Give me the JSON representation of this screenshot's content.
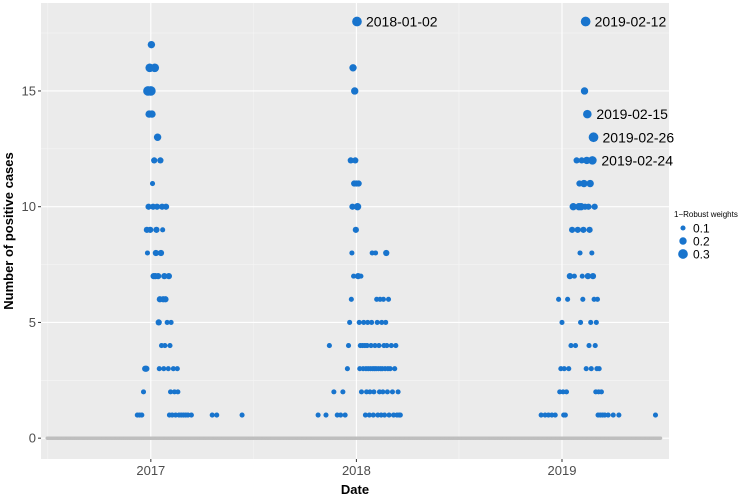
{
  "chart_data": {
    "type": "scatter",
    "title": "",
    "xlabel": "Date",
    "ylabel": "Number of positive cases",
    "xlim": [
      "2016-06-20",
      "2019-07-10"
    ],
    "ylim": [
      -0.9,
      18.8
    ],
    "x_ticks": [
      {
        "value": "2017-01-01",
        "label": "2017"
      },
      {
        "value": "2018-01-01",
        "label": "2018"
      },
      {
        "value": "2019-01-01",
        "label": "2019"
      }
    ],
    "y_ticks": [
      0,
      5,
      10,
      15
    ],
    "grid": true,
    "background": "#EBEBEB",
    "point_color": "#1874CD",
    "zero_color": "#BEBEBE",
    "legend": {
      "title": "1−Robust weights",
      "position": "right",
      "entries": [
        {
          "label": "0.1",
          "weight": 0.1
        },
        {
          "label": "0.2",
          "weight": 0.2
        },
        {
          "label": "0.3",
          "weight": 0.3
        }
      ]
    },
    "zero_range": [
      "2016-07-01",
      "2019-06-25"
    ],
    "points": [
      {
        "x": "2016-12-08",
        "y": 1,
        "w": 0.1
      },
      {
        "x": "2016-12-12",
        "y": 1,
        "w": 0.1
      },
      {
        "x": "2016-12-16",
        "y": 1,
        "w": 0.1
      },
      {
        "x": "2016-12-19",
        "y": 2,
        "w": 0.1
      },
      {
        "x": "2016-12-22",
        "y": 3,
        "w": 0.15
      },
      {
        "x": "2016-12-24",
        "y": 3,
        "w": 0.15
      },
      {
        "x": "2016-12-25",
        "y": 9,
        "w": 0.15
      },
      {
        "x": "2016-12-26",
        "y": 8,
        "w": 0.1
      },
      {
        "x": "2016-12-27",
        "y": 15,
        "w": 0.3
      },
      {
        "x": "2016-12-28",
        "y": 10,
        "w": 0.15
      },
      {
        "x": "2016-12-29",
        "y": 14,
        "w": 0.2
      },
      {
        "x": "2016-12-30",
        "y": 16,
        "w": 0.25
      },
      {
        "x": "2016-12-31",
        "y": 9,
        "w": 0.15
      },
      {
        "x": "2017-01-01",
        "y": 15,
        "w": 0.3
      },
      {
        "x": "2017-01-02",
        "y": 17,
        "w": 0.2
      },
      {
        "x": "2017-01-03",
        "y": 14,
        "w": 0.2
      },
      {
        "x": "2017-01-04",
        "y": 11,
        "w": 0.1
      },
      {
        "x": "2017-01-05",
        "y": 10,
        "w": 0.15
      },
      {
        "x": "2017-01-06",
        "y": 7,
        "w": 0.15
      },
      {
        "x": "2017-01-07",
        "y": 12,
        "w": 0.15
      },
      {
        "x": "2017-01-08",
        "y": 16,
        "w": 0.25
      },
      {
        "x": "2017-01-09",
        "y": 7,
        "w": 0.15
      },
      {
        "x": "2017-01-10",
        "y": 8,
        "w": 0.15
      },
      {
        "x": "2017-01-11",
        "y": 9,
        "w": 0.15
      },
      {
        "x": "2017-01-12",
        "y": 10,
        "w": 0.15
      },
      {
        "x": "2017-01-13",
        "y": 13,
        "w": 0.2
      },
      {
        "x": "2017-01-14",
        "y": 7,
        "w": 0.15
      },
      {
        "x": "2017-01-15",
        "y": 5,
        "w": 0.15
      },
      {
        "x": "2017-01-16",
        "y": 3,
        "w": 0.1
      },
      {
        "x": "2017-01-17",
        "y": 6,
        "w": 0.15
      },
      {
        "x": "2017-01-18",
        "y": 12,
        "w": 0.15
      },
      {
        "x": "2017-01-19",
        "y": 8,
        "w": 0.15
      },
      {
        "x": "2017-01-20",
        "y": 4,
        "w": 0.1
      },
      {
        "x": "2017-01-21",
        "y": 10,
        "w": 0.15
      },
      {
        "x": "2017-01-22",
        "y": 9,
        "w": 0.1
      },
      {
        "x": "2017-01-23",
        "y": 6,
        "w": 0.15
      },
      {
        "x": "2017-01-24",
        "y": 3,
        "w": 0.1
      },
      {
        "x": "2017-01-25",
        "y": 7,
        "w": 0.15
      },
      {
        "x": "2017-01-26",
        "y": 4,
        "w": 0.1
      },
      {
        "x": "2017-01-27",
        "y": 6,
        "w": 0.15
      },
      {
        "x": "2017-01-28",
        "y": 10,
        "w": 0.15
      },
      {
        "x": "2017-01-30",
        "y": 5,
        "w": 0.1
      },
      {
        "x": "2017-02-01",
        "y": 3,
        "w": 0.1
      },
      {
        "x": "2017-02-02",
        "y": 7,
        "w": 0.15
      },
      {
        "x": "2017-02-03",
        "y": 1,
        "w": 0.1
      },
      {
        "x": "2017-02-04",
        "y": 4,
        "w": 0.1
      },
      {
        "x": "2017-02-05",
        "y": 2,
        "w": 0.1
      },
      {
        "x": "2017-02-06",
        "y": 5,
        "w": 0.1
      },
      {
        "x": "2017-02-08",
        "y": 1,
        "w": 0.1
      },
      {
        "x": "2017-02-10",
        "y": 3,
        "w": 0.1
      },
      {
        "x": "2017-02-12",
        "y": 2,
        "w": 0.1
      },
      {
        "x": "2017-02-14",
        "y": 1,
        "w": 0.1
      },
      {
        "x": "2017-02-17",
        "y": 3,
        "w": 0.1
      },
      {
        "x": "2017-02-18",
        "y": 2,
        "w": 0.1
      },
      {
        "x": "2017-02-20",
        "y": 1,
        "w": 0.1
      },
      {
        "x": "2017-02-24",
        "y": 1,
        "w": 0.1
      },
      {
        "x": "2017-02-28",
        "y": 1,
        "w": 0.1
      },
      {
        "x": "2017-03-04",
        "y": 1,
        "w": 0.1
      },
      {
        "x": "2017-03-08",
        "y": 1,
        "w": 0.1
      },
      {
        "x": "2017-03-14",
        "y": 1,
        "w": 0.1
      },
      {
        "x": "2017-04-20",
        "y": 1,
        "w": 0.1
      },
      {
        "x": "2017-04-28",
        "y": 1,
        "w": 0.1
      },
      {
        "x": "2017-06-12",
        "y": 1,
        "w": 0.1
      },
      {
        "x": "2017-10-25",
        "y": 1,
        "w": 0.1
      },
      {
        "x": "2017-11-08",
        "y": 1,
        "w": 0.1
      },
      {
        "x": "2017-11-14",
        "y": 4,
        "w": 0.1
      },
      {
        "x": "2017-11-22",
        "y": 2,
        "w": 0.1
      },
      {
        "x": "2017-11-28",
        "y": 1,
        "w": 0.1
      },
      {
        "x": "2017-12-04",
        "y": 1,
        "w": 0.1
      },
      {
        "x": "2017-12-08",
        "y": 2,
        "w": 0.1
      },
      {
        "x": "2017-12-12",
        "y": 1,
        "w": 0.1
      },
      {
        "x": "2017-12-16",
        "y": 3,
        "w": 0.1
      },
      {
        "x": "2017-12-18",
        "y": 4,
        "w": 0.1
      },
      {
        "x": "2017-12-20",
        "y": 5,
        "w": 0.1
      },
      {
        "x": "2017-12-22",
        "y": 12,
        "w": 0.15
      },
      {
        "x": "2017-12-23",
        "y": 6,
        "w": 0.1
      },
      {
        "x": "2017-12-24",
        "y": 8,
        "w": 0.1
      },
      {
        "x": "2017-12-25",
        "y": 10,
        "w": 0.15
      },
      {
        "x": "2017-12-26",
        "y": 16,
        "w": 0.2
      },
      {
        "x": "2017-12-27",
        "y": 7,
        "w": 0.1
      },
      {
        "x": "2017-12-28",
        "y": 11,
        "w": 0.15
      },
      {
        "x": "2017-12-29",
        "y": 15,
        "w": 0.2
      },
      {
        "x": "2017-12-30",
        "y": 12,
        "w": 0.15
      },
      {
        "x": "2017-12-31",
        "y": 9,
        "w": 0.15
      },
      {
        "x": "2018-01-01",
        "y": 11,
        "w": 0.15
      },
      {
        "x": "2018-01-02",
        "y": 18,
        "w": 0.3
      },
      {
        "x": "2018-01-03",
        "y": 10,
        "w": 0.2
      },
      {
        "x": "2018-01-04",
        "y": 7,
        "w": 0.15
      },
      {
        "x": "2018-01-05",
        "y": 11,
        "w": 0.15
      },
      {
        "x": "2018-01-06",
        "y": 5,
        "w": 0.1
      },
      {
        "x": "2018-01-07",
        "y": 3,
        "w": 0.1
      },
      {
        "x": "2018-01-08",
        "y": 4,
        "w": 0.1
      },
      {
        "x": "2018-01-09",
        "y": 7,
        "w": 0.1
      },
      {
        "x": "2018-01-10",
        "y": 2,
        "w": 0.1
      },
      {
        "x": "2018-01-12",
        "y": 4,
        "w": 0.1
      },
      {
        "x": "2018-01-13",
        "y": 3,
        "w": 0.1
      },
      {
        "x": "2018-01-14",
        "y": 5,
        "w": 0.1
      },
      {
        "x": "2018-01-16",
        "y": 4,
        "w": 0.1
      },
      {
        "x": "2018-01-17",
        "y": 1,
        "w": 0.1
      },
      {
        "x": "2018-01-18",
        "y": 3,
        "w": 0.1
      },
      {
        "x": "2018-01-19",
        "y": 2,
        "w": 0.1
      },
      {
        "x": "2018-01-20",
        "y": 4,
        "w": 0.1
      },
      {
        "x": "2018-01-21",
        "y": 5,
        "w": 0.1
      },
      {
        "x": "2018-01-22",
        "y": 3,
        "w": 0.1
      },
      {
        "x": "2018-01-24",
        "y": 1,
        "w": 0.1
      },
      {
        "x": "2018-01-25",
        "y": 2,
        "w": 0.1
      },
      {
        "x": "2018-01-26",
        "y": 3,
        "w": 0.1
      },
      {
        "x": "2018-01-27",
        "y": 4,
        "w": 0.1
      },
      {
        "x": "2018-01-28",
        "y": 5,
        "w": 0.1
      },
      {
        "x": "2018-01-29",
        "y": 8,
        "w": 0.1
      },
      {
        "x": "2018-01-30",
        "y": 3,
        "w": 0.1
      },
      {
        "x": "2018-01-31",
        "y": 1,
        "w": 0.1
      },
      {
        "x": "2018-02-01",
        "y": 2,
        "w": 0.1
      },
      {
        "x": "2018-02-02",
        "y": 3,
        "w": 0.1
      },
      {
        "x": "2018-02-03",
        "y": 4,
        "w": 0.1
      },
      {
        "x": "2018-02-04",
        "y": 8,
        "w": 0.1
      },
      {
        "x": "2018-02-05",
        "y": 3,
        "w": 0.1
      },
      {
        "x": "2018-02-06",
        "y": 6,
        "w": 0.1
      },
      {
        "x": "2018-02-07",
        "y": 5,
        "w": 0.1
      },
      {
        "x": "2018-02-08",
        "y": 1,
        "w": 0.1
      },
      {
        "x": "2018-02-09",
        "y": 3,
        "w": 0.1
      },
      {
        "x": "2018-02-10",
        "y": 4,
        "w": 0.1
      },
      {
        "x": "2018-02-11",
        "y": 2,
        "w": 0.1
      },
      {
        "x": "2018-02-12",
        "y": 6,
        "w": 0.1
      },
      {
        "x": "2018-02-13",
        "y": 3,
        "w": 0.1
      },
      {
        "x": "2018-02-14",
        "y": 1,
        "w": 0.1
      },
      {
        "x": "2018-02-15",
        "y": 5,
        "w": 0.1
      },
      {
        "x": "2018-02-16",
        "y": 3,
        "w": 0.1
      },
      {
        "x": "2018-02-17",
        "y": 2,
        "w": 0.1
      },
      {
        "x": "2018-02-18",
        "y": 6,
        "w": 0.1
      },
      {
        "x": "2018-02-19",
        "y": 4,
        "w": 0.1
      },
      {
        "x": "2018-02-20",
        "y": 1,
        "w": 0.1
      },
      {
        "x": "2018-02-21",
        "y": 3,
        "w": 0.1
      },
      {
        "x": "2018-02-22",
        "y": 5,
        "w": 0.1
      },
      {
        "x": "2018-02-23",
        "y": 8,
        "w": 0.15
      },
      {
        "x": "2018-02-24",
        "y": 4,
        "w": 0.1
      },
      {
        "x": "2018-02-25",
        "y": 2,
        "w": 0.1
      },
      {
        "x": "2018-02-26",
        "y": 3,
        "w": 0.1
      },
      {
        "x": "2018-02-27",
        "y": 6,
        "w": 0.1
      },
      {
        "x": "2018-02-28",
        "y": 1,
        "w": 0.1
      },
      {
        "x": "2018-03-02",
        "y": 3,
        "w": 0.1
      },
      {
        "x": "2018-03-04",
        "y": 4,
        "w": 0.1
      },
      {
        "x": "2018-03-06",
        "y": 2,
        "w": 0.1
      },
      {
        "x": "2018-03-08",
        "y": 1,
        "w": 0.1
      },
      {
        "x": "2018-03-10",
        "y": 3,
        "w": 0.1
      },
      {
        "x": "2018-03-12",
        "y": 4,
        "w": 0.1
      },
      {
        "x": "2018-03-14",
        "y": 1,
        "w": 0.1
      },
      {
        "x": "2018-03-16",
        "y": 2,
        "w": 0.1
      },
      {
        "x": "2018-03-18",
        "y": 1,
        "w": 0.1
      },
      {
        "x": "2018-03-20",
        "y": 1,
        "w": 0.1
      },
      {
        "x": "2018-11-25",
        "y": 1,
        "w": 0.1
      },
      {
        "x": "2018-12-02",
        "y": 1,
        "w": 0.1
      },
      {
        "x": "2018-12-08",
        "y": 1,
        "w": 0.1
      },
      {
        "x": "2018-12-14",
        "y": 1,
        "w": 0.1
      },
      {
        "x": "2018-12-20",
        "y": 1,
        "w": 0.1
      },
      {
        "x": "2018-12-26",
        "y": 6,
        "w": 0.1
      },
      {
        "x": "2018-12-28",
        "y": 2,
        "w": 0.1
      },
      {
        "x": "2018-12-30",
        "y": 3,
        "w": 0.1
      },
      {
        "x": "2019-01-01",
        "y": 5,
        "w": 0.1
      },
      {
        "x": "2019-01-03",
        "y": 2,
        "w": 0.1
      },
      {
        "x": "2019-01-04",
        "y": 1,
        "w": 0.1
      },
      {
        "x": "2019-01-05",
        "y": 3,
        "w": 0.1
      },
      {
        "x": "2019-01-07",
        "y": 1,
        "w": 0.1
      },
      {
        "x": "2019-01-09",
        "y": 2,
        "w": 0.1
      },
      {
        "x": "2019-01-11",
        "y": 6,
        "w": 0.1
      },
      {
        "x": "2019-01-13",
        "y": 3,
        "w": 0.1
      },
      {
        "x": "2019-01-15",
        "y": 7,
        "w": 0.15
      },
      {
        "x": "2019-01-17",
        "y": 4,
        "w": 0.1
      },
      {
        "x": "2019-01-19",
        "y": 9,
        "w": 0.15
      },
      {
        "x": "2019-01-21",
        "y": 10,
        "w": 0.2
      },
      {
        "x": "2019-01-23",
        "y": 7,
        "w": 0.1
      },
      {
        "x": "2019-01-25",
        "y": 4,
        "w": 0.1
      },
      {
        "x": "2019-01-27",
        "y": 12,
        "w": 0.15
      },
      {
        "x": "2019-01-29",
        "y": 9,
        "w": 0.15
      },
      {
        "x": "2019-01-31",
        "y": 10,
        "w": 0.2
      },
      {
        "x": "2019-02-01",
        "y": 11,
        "w": 0.15
      },
      {
        "x": "2019-02-02",
        "y": 8,
        "w": 0.1
      },
      {
        "x": "2019-02-03",
        "y": 5,
        "w": 0.1
      },
      {
        "x": "2019-02-04",
        "y": 10,
        "w": 0.2
      },
      {
        "x": "2019-02-05",
        "y": 12,
        "w": 0.15
      },
      {
        "x": "2019-02-06",
        "y": 7,
        "w": 0.1
      },
      {
        "x": "2019-02-07",
        "y": 6,
        "w": 0.1
      },
      {
        "x": "2019-02-08",
        "y": 9,
        "w": 0.15
      },
      {
        "x": "2019-02-09",
        "y": 11,
        "w": 0.2
      },
      {
        "x": "2019-02-10",
        "y": 15,
        "w": 0.2
      },
      {
        "x": "2019-02-11",
        "y": 10,
        "w": 0.15
      },
      {
        "x": "2019-02-12",
        "y": 18,
        "w": 0.3
      },
      {
        "x": "2019-02-13",
        "y": 3,
        "w": 0.1
      },
      {
        "x": "2019-02-14",
        "y": 12,
        "w": 0.2
      },
      {
        "x": "2019-02-15",
        "y": 14,
        "w": 0.25
      },
      {
        "x": "2019-02-16",
        "y": 7,
        "w": 0.15
      },
      {
        "x": "2019-02-17",
        "y": 10,
        "w": 0.15
      },
      {
        "x": "2019-02-18",
        "y": 4,
        "w": 0.1
      },
      {
        "x": "2019-02-19",
        "y": 9,
        "w": 0.15
      },
      {
        "x": "2019-02-20",
        "y": 11,
        "w": 0.2
      },
      {
        "x": "2019-02-21",
        "y": 5,
        "w": 0.1
      },
      {
        "x": "2019-02-22",
        "y": 3,
        "w": 0.1
      },
      {
        "x": "2019-02-23",
        "y": 8,
        "w": 0.1
      },
      {
        "x": "2019-02-24",
        "y": 12,
        "w": 0.25
      },
      {
        "x": "2019-02-25",
        "y": 7,
        "w": 0.15
      },
      {
        "x": "2019-02-26",
        "y": 13,
        "w": 0.3
      },
      {
        "x": "2019-02-27",
        "y": 6,
        "w": 0.1
      },
      {
        "x": "2019-02-28",
        "y": 10,
        "w": 0.15
      },
      {
        "x": "2019-03-01",
        "y": 4,
        "w": 0.1
      },
      {
        "x": "2019-03-02",
        "y": 2,
        "w": 0.1
      },
      {
        "x": "2019-03-03",
        "y": 5,
        "w": 0.1
      },
      {
        "x": "2019-03-04",
        "y": 3,
        "w": 0.1
      },
      {
        "x": "2019-03-05",
        "y": 6,
        "w": 0.1
      },
      {
        "x": "2019-03-06",
        "y": 1,
        "w": 0.1
      },
      {
        "x": "2019-03-07",
        "y": 2,
        "w": 0.1
      },
      {
        "x": "2019-03-08",
        "y": 3,
        "w": 0.1
      },
      {
        "x": "2019-03-10",
        "y": 1,
        "w": 0.1
      },
      {
        "x": "2019-03-12",
        "y": 2,
        "w": 0.1
      },
      {
        "x": "2019-03-14",
        "y": 1,
        "w": 0.1
      },
      {
        "x": "2019-03-18",
        "y": 1,
        "w": 0.1
      },
      {
        "x": "2019-03-24",
        "y": 1,
        "w": 0.1
      },
      {
        "x": "2019-04-02",
        "y": 1,
        "w": 0.1
      },
      {
        "x": "2019-04-12",
        "y": 1,
        "w": 0.1
      },
      {
        "x": "2019-06-16",
        "y": 1,
        "w": 0.1
      }
    ],
    "annotations": [
      {
        "text": "2018-01-02",
        "x": "2018-01-02",
        "y": 18
      },
      {
        "text": "2019-02-12",
        "x": "2019-02-12",
        "y": 18
      },
      {
        "text": "2019-02-15",
        "x": "2019-02-15",
        "y": 14
      },
      {
        "text": "2019-02-26",
        "x": "2019-02-26",
        "y": 13
      },
      {
        "text": "2019-02-24",
        "x": "2019-02-24",
        "y": 12
      }
    ]
  }
}
